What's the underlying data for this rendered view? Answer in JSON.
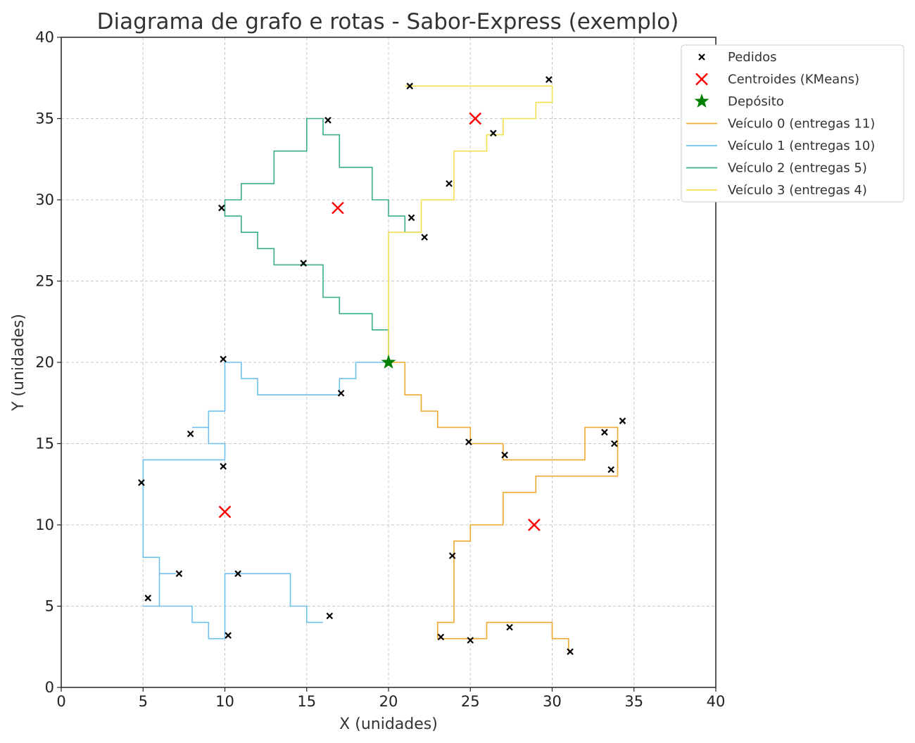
{
  "chart_data": {
    "type": "scatter",
    "title": "Diagrama de grafo e rotas - Sabor-Express (exemplo)",
    "xlabel": "X (unidades)",
    "ylabel": "Y (unidades)",
    "xlim": [
      0,
      40
    ],
    "ylim": [
      0,
      40
    ],
    "xticks": [
      "0",
      "5",
      "10",
      "15",
      "20",
      "25",
      "30",
      "35",
      "40"
    ],
    "yticks": [
      "0",
      "5",
      "10",
      "15",
      "20",
      "25",
      "30",
      "35",
      "40"
    ],
    "grid": true,
    "legend_position": "top-right outside",
    "legend": [
      {
        "label": "Pedidos",
        "marker": "x-small",
        "color": "#000000"
      },
      {
        "label": "Centroides (KMeans)",
        "marker": "x-large",
        "color": "#ff0000"
      },
      {
        "label": "Depósito",
        "marker": "star",
        "color": "#008000"
      },
      {
        "label": "Veículo 0 (entregas 11)",
        "marker": "line",
        "color": "#f0a830"
      },
      {
        "label": "Veículo 1 (entregas 10)",
        "marker": "line",
        "color": "#6ec0ea"
      },
      {
        "label": "Veículo 2 (entregas 5)",
        "marker": "line",
        "color": "#3aaf80"
      },
      {
        "label": "Veículo 3 (entregas 4)",
        "marker": "line",
        "color": "#f2e050"
      }
    ],
    "depot": {
      "x": 20,
      "y": 20,
      "color": "#008000"
    },
    "centroids": {
      "color": "#ff0000",
      "points": [
        {
          "x": 16.9,
          "y": 29.5
        },
        {
          "x": 25.3,
          "y": 35.0
        },
        {
          "x": 10.0,
          "y": 10.8
        },
        {
          "x": 28.9,
          "y": 10.0
        }
      ]
    },
    "orders": {
      "color": "#000000",
      "points": [
        {
          "x": 21.3,
          "y": 37.0
        },
        {
          "x": 29.8,
          "y": 37.4
        },
        {
          "x": 16.3,
          "y": 34.9
        },
        {
          "x": 26.4,
          "y": 34.1
        },
        {
          "x": 23.7,
          "y": 31.0
        },
        {
          "x": 9.8,
          "y": 29.5
        },
        {
          "x": 21.4,
          "y": 28.9
        },
        {
          "x": 22.2,
          "y": 27.7
        },
        {
          "x": 14.8,
          "y": 26.1
        },
        {
          "x": 9.9,
          "y": 20.2
        },
        {
          "x": 17.1,
          "y": 18.1
        },
        {
          "x": 7.9,
          "y": 15.6
        },
        {
          "x": 24.9,
          "y": 15.1
        },
        {
          "x": 27.1,
          "y": 14.3
        },
        {
          "x": 9.9,
          "y": 13.6
        },
        {
          "x": 4.9,
          "y": 12.6
        },
        {
          "x": 34.3,
          "y": 16.4
        },
        {
          "x": 33.2,
          "y": 15.7
        },
        {
          "x": 33.8,
          "y": 15.0
        },
        {
          "x": 33.6,
          "y": 13.4
        },
        {
          "x": 23.9,
          "y": 8.1
        },
        {
          "x": 7.2,
          "y": 7.0
        },
        {
          "x": 10.8,
          "y": 7.0
        },
        {
          "x": 5.3,
          "y": 5.5
        },
        {
          "x": 16.4,
          "y": 4.4
        },
        {
          "x": 27.4,
          "y": 3.7
        },
        {
          "x": 10.2,
          "y": 3.2
        },
        {
          "x": 23.2,
          "y": 3.1
        },
        {
          "x": 25.0,
          "y": 2.9
        },
        {
          "x": 31.1,
          "y": 2.2
        }
      ]
    },
    "series": [
      {
        "name": "Veículo 0 (entregas 11)",
        "color": "#f0a830",
        "points": [
          [
            20,
            20
          ],
          [
            21,
            20
          ],
          [
            21,
            18
          ],
          [
            22,
            18
          ],
          [
            22,
            17
          ],
          [
            23,
            17
          ],
          [
            23,
            16
          ],
          [
            25,
            16
          ],
          [
            25,
            15
          ],
          [
            27,
            15
          ],
          [
            27,
            14
          ],
          [
            32,
            14
          ],
          [
            32,
            16
          ],
          [
            34,
            16
          ],
          [
            34,
            13
          ],
          [
            29,
            13
          ],
          [
            29,
            12
          ],
          [
            27,
            12
          ],
          [
            27,
            10
          ],
          [
            25,
            10
          ],
          [
            25,
            9
          ],
          [
            24,
            9
          ],
          [
            24,
            4
          ],
          [
            23,
            4
          ],
          [
            23,
            3
          ],
          [
            26,
            3
          ],
          [
            26,
            4
          ],
          [
            30,
            4
          ],
          [
            30,
            3
          ],
          [
            31,
            3
          ],
          [
            31,
            2.2
          ]
        ]
      },
      {
        "name": "Veículo 1 (entregas 10)",
        "color": "#6ec0ea",
        "points": [
          [
            20,
            20
          ],
          [
            18,
            20
          ],
          [
            18,
            19
          ],
          [
            17,
            19
          ],
          [
            17,
            18
          ],
          [
            12,
            18
          ],
          [
            12,
            19
          ],
          [
            11,
            19
          ],
          [
            11,
            20
          ],
          [
            10,
            20
          ],
          [
            10,
            17
          ],
          [
            9,
            17
          ],
          [
            9,
            16
          ],
          [
            8,
            16
          ],
          [
            9,
            16
          ],
          [
            9,
            15
          ],
          [
            10,
            15
          ],
          [
            10,
            14
          ],
          [
            5,
            14
          ],
          [
            5,
            8
          ],
          [
            6,
            8
          ],
          [
            6,
            7
          ],
          [
            7,
            7
          ],
          [
            6,
            7
          ],
          [
            6,
            5
          ],
          [
            5,
            5
          ],
          [
            8,
            5
          ],
          [
            8,
            4
          ],
          [
            9,
            4
          ],
          [
            9,
            3
          ],
          [
            10,
            3
          ],
          [
            10,
            7
          ],
          [
            14,
            7
          ],
          [
            14,
            5
          ],
          [
            15,
            5
          ],
          [
            15,
            4
          ],
          [
            16,
            4
          ]
        ]
      },
      {
        "name": "Veículo 2 (entregas 5)",
        "color": "#3aaf80",
        "points": [
          [
            20,
            20
          ],
          [
            20,
            22
          ],
          [
            19,
            22
          ],
          [
            19,
            23
          ],
          [
            17,
            23
          ],
          [
            17,
            24
          ],
          [
            16,
            24
          ],
          [
            16,
            26
          ],
          [
            13,
            26
          ],
          [
            13,
            27
          ],
          [
            12,
            27
          ],
          [
            12,
            28
          ],
          [
            11,
            28
          ],
          [
            11,
            29
          ],
          [
            10,
            29
          ],
          [
            10,
            30
          ],
          [
            11,
            30
          ],
          [
            11,
            31
          ],
          [
            13,
            31
          ],
          [
            13,
            33
          ],
          [
            15,
            33
          ],
          [
            15,
            35
          ],
          [
            16,
            35
          ],
          [
            16,
            34
          ],
          [
            17,
            34
          ],
          [
            17,
            32
          ],
          [
            19,
            32
          ],
          [
            19,
            30
          ],
          [
            20,
            30
          ],
          [
            20,
            29
          ],
          [
            21,
            29
          ],
          [
            21,
            28
          ],
          [
            22,
            28
          ]
        ]
      },
      {
        "name": "Veículo 3 (entregas 4)",
        "color": "#f2e050",
        "points": [
          [
            20,
            20
          ],
          [
            20,
            28
          ],
          [
            22,
            28
          ],
          [
            22,
            30
          ],
          [
            24,
            30
          ],
          [
            24,
            33
          ],
          [
            26,
            33
          ],
          [
            26,
            34
          ],
          [
            27,
            34
          ],
          [
            27,
            35
          ],
          [
            29,
            35
          ],
          [
            29,
            36
          ],
          [
            30,
            36
          ],
          [
            30,
            37
          ],
          [
            21,
            37
          ]
        ]
      }
    ]
  }
}
